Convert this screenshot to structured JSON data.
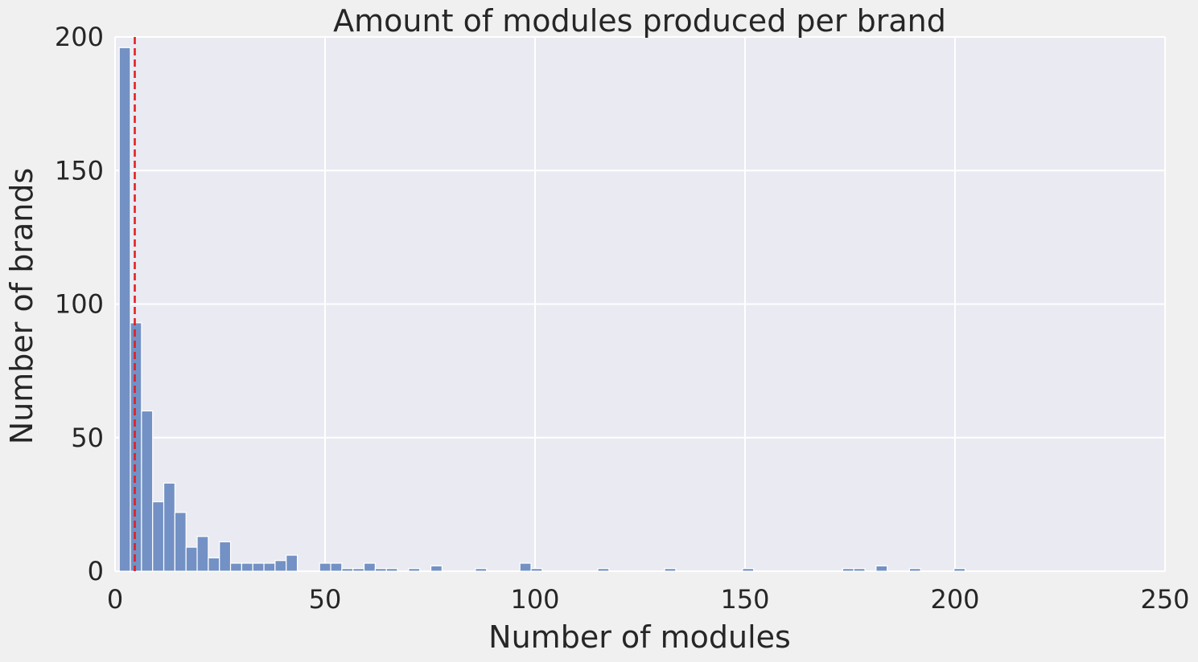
{
  "chart_data": {
    "type": "bar",
    "title": "Amount of modules produced per brand",
    "xlabel": "Number of modules",
    "ylabel": "Number of brands",
    "xlim": [
      0,
      250
    ],
    "ylim": [
      0,
      200
    ],
    "x_ticks": [
      "0",
      "50",
      "100",
      "150",
      "200",
      "250"
    ],
    "y_ticks": [
      "0",
      "50",
      "100",
      "150",
      "200"
    ],
    "grid": true,
    "bin_width": 2.65,
    "bin_start": 1,
    "counts": [
      196,
      93,
      60,
      26,
      33,
      22,
      9,
      13,
      5,
      11,
      3,
      3,
      3,
      3,
      4,
      6,
      0,
      0,
      3,
      3,
      1,
      1,
      3,
      1,
      1,
      0,
      1,
      0,
      2,
      0,
      0,
      0,
      1,
      0,
      0,
      0,
      3,
      1,
      0,
      0,
      0,
      0,
      0,
      1,
      0,
      0,
      0,
      0,
      0,
      1,
      0,
      0,
      0,
      0,
      0,
      0,
      1,
      0,
      0,
      0,
      0,
      0,
      0,
      0,
      0,
      1,
      1,
      0,
      2,
      0,
      0,
      1,
      0,
      0,
      0,
      1
    ],
    "reference_line": {
      "x": 4.7,
      "color": "#e41a1c",
      "style": "dashed"
    },
    "colors": {
      "bar": "#7391c4",
      "bar_edge": "#ffffff",
      "plot_bg": "#eaeaf2",
      "grid": "#ffffff",
      "figure_bg": "#f0f0f0"
    }
  }
}
